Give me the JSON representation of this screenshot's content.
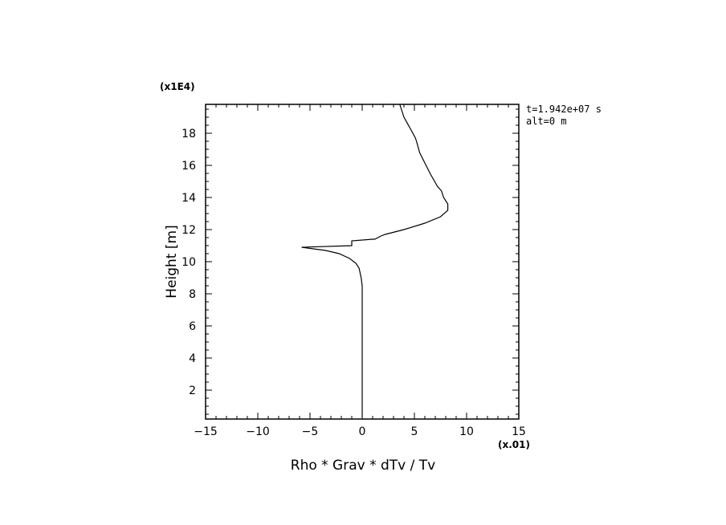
{
  "chart_data": {
    "type": "line",
    "xlabel": "Rho * Grav * dTv / Tv",
    "ylabel": "Height [m]",
    "x_multiplier": "(x.01)",
    "y_multiplier": "(x1E4)",
    "xlim": [
      -15,
      15
    ],
    "ylim": [
      0.2,
      19.8
    ],
    "xticks": [
      -15,
      -10,
      -5,
      0,
      5,
      10,
      15
    ],
    "xtick_labels": [
      "−15",
      "−10",
      "−5",
      "0",
      "5",
      "10",
      "15"
    ],
    "yticks": [
      2,
      4,
      6,
      8,
      10,
      12,
      14,
      16,
      18
    ],
    "ytick_labels": [
      "2",
      "4",
      "6",
      "8",
      "10",
      "12",
      "14",
      "16",
      "18"
    ],
    "annotations": [
      "t=1.942e+07 s",
      "alt=0 m"
    ],
    "grid": false,
    "series": [
      {
        "x": [
          0.0,
          0.0,
          0.0,
          0.0,
          -0.1,
          -0.2,
          -0.3,
          -0.6,
          -1.2,
          -2.2,
          -3.5,
          -5.8,
          -1.0,
          -1.0,
          1.0,
          1.2,
          1.8,
          2.2,
          4.0,
          6.0,
          7.5,
          8.2,
          8.2,
          7.8,
          7.6,
          7.2,
          6.5,
          5.5,
          5.2,
          5.1,
          4.6,
          4.0,
          3.6
        ],
        "y": [
          0.3,
          4.0,
          7.5,
          8.5,
          9.0,
          9.3,
          9.6,
          9.9,
          10.2,
          10.5,
          10.7,
          10.9,
          11.0,
          11.3,
          11.4,
          11.4,
          11.6,
          11.7,
          12.0,
          12.4,
          12.8,
          13.2,
          13.6,
          14.0,
          14.4,
          14.7,
          15.5,
          16.8,
          17.5,
          17.7,
          18.3,
          19.0,
          19.8
        ]
      }
    ]
  }
}
